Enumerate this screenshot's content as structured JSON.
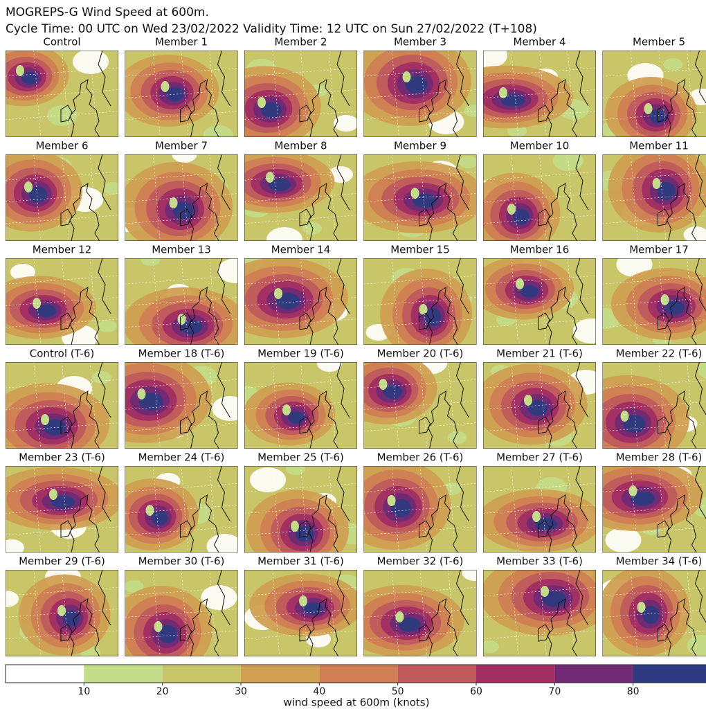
{
  "header": {
    "title": "MOGREPS-G Wind Speed at 600m.",
    "subtitle": "Cycle Time: 00 UTC on Wed 23/02/2022 Validity Time: 12 UTC on Sun 27/02/2022 (T+108)"
  },
  "panels": [
    "Control",
    "Member 1",
    "Member 2",
    "Member 3",
    "Member 4",
    "Member 5",
    "Member 6",
    "Member 7",
    "Member 8",
    "Member 9",
    "Member 10",
    "Member 11",
    "Member 12",
    "Member 13",
    "Member 14",
    "Member 15",
    "Member 16",
    "Member 17",
    "Control (T-6)",
    "Member 18 (T-6)",
    "Member 19 (T-6)",
    "Member 20 (T-6)",
    "Member 21 (T-6)",
    "Member 22 (T-6)",
    "Member 23 (T-6)",
    "Member 24 (T-6)",
    "Member 25 (T-6)",
    "Member 26 (T-6)",
    "Member 27 (T-6)",
    "Member 28 (T-6)",
    "Member 29 (T-6)",
    "Member 30 (T-6)",
    "Member 31 (T-6)",
    "Member 32 (T-6)",
    "Member 33 (T-6)",
    "Member 34 (T-6)"
  ],
  "colorbar": {
    "label": "wind speed at 600m (knots)",
    "bins": [
      0,
      10,
      20,
      30,
      40,
      50,
      60,
      70,
      80,
      90
    ],
    "colors": [
      "#ffffff",
      "#c3dc88",
      "#c9c66a",
      "#d0a052",
      "#cf7f53",
      "#c05a5d",
      "#a12d62",
      "#702b74",
      "#2d3a7f"
    ],
    "ticks": [
      10,
      20,
      30,
      40,
      50,
      60,
      70,
      80
    ]
  }
}
